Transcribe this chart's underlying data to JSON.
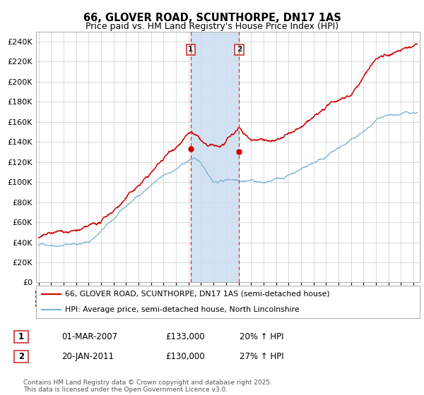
{
  "title": "66, GLOVER ROAD, SCUNTHORPE, DN17 1AS",
  "subtitle": "Price paid vs. HM Land Registry's House Price Index (HPI)",
  "ylim": [
    0,
    250000
  ],
  "yticks": [
    0,
    20000,
    40000,
    60000,
    80000,
    100000,
    120000,
    140000,
    160000,
    180000,
    200000,
    220000,
    240000
  ],
  "xlim_start": 1994.8,
  "xlim_end": 2025.5,
  "marker1_x": 2007.17,
  "marker2_x": 2011.05,
  "shade_color": "#ccddf0",
  "vline_color": "#cc3333",
  "red_line_color": "#cc0000",
  "blue_line_color": "#7ab0d4",
  "legend1_label": "66, GLOVER ROAD, SCUNTHORPE, DN17 1AS (semi-detached house)",
  "legend2_label": "HPI: Average price, semi-detached house, North Lincolnshire",
  "table_row1": [
    "1",
    "01-MAR-2007",
    "£133,000",
    "20% ↑ HPI"
  ],
  "table_row2": [
    "2",
    "20-JAN-2011",
    "£130,000",
    "27% ↑ HPI"
  ],
  "footer": "Contains HM Land Registry data © Crown copyright and database right 2025.\nThis data is licensed under the Open Government Licence v3.0.",
  "background_color": "#ffffff",
  "grid_color": "#cccccc"
}
